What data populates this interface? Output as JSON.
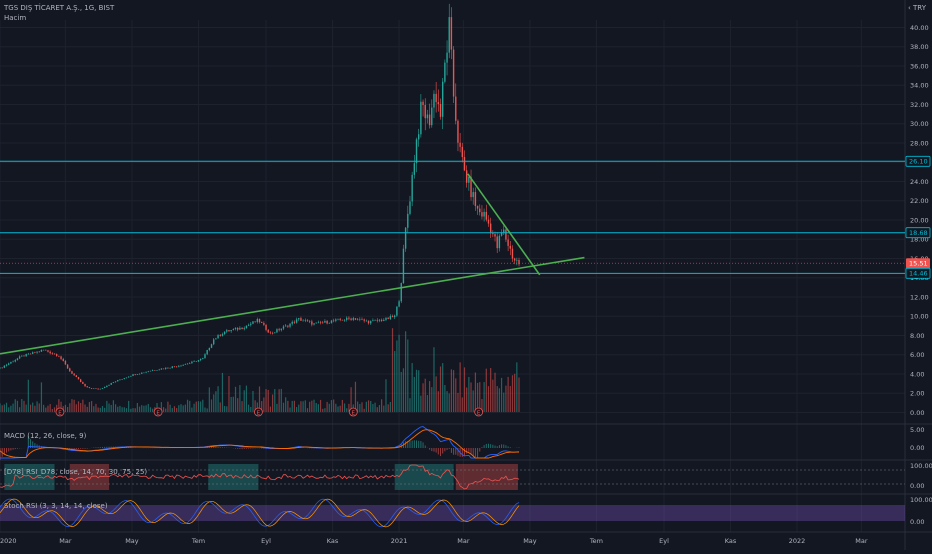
{
  "header": {
    "symbol": "TGS DIŞ TİCARET A.Ş., 1G, BIST",
    "volume_label": "Hacim",
    "currency": "‹ TRY"
  },
  "indicators": {
    "macd_label": "MACD (12, 26, close, 9)",
    "rsi_label": "[D78] RSI_D78, close, 14, 70, 30, 75, 25)",
    "stoch_label": "Stoch RSI (3, 3, 14, 14, close)"
  },
  "colors": {
    "background": "#131722",
    "up": "#26a69a",
    "down": "#ef5350",
    "horizontal_line": "#00bcd4",
    "trendline": "#4caf50",
    "macd_line": "#2962ff",
    "signal_line": "#ff6d00",
    "stoch_fill": "#7e57c2"
  },
  "chart_data": {
    "type": "candlestick",
    "x_labels": [
      "2020",
      "Mar",
      "May",
      "Tem",
      "Eyl",
      "Kas",
      "2021",
      "Mar",
      "May",
      "Tem",
      "Eyl",
      "Kas",
      "2022",
      "Mar"
    ],
    "y_ticks": [
      "40.00",
      "38.00",
      "36.00",
      "34.00",
      "32.00",
      "30.00",
      "28.00",
      "26.00",
      "24.00",
      "22.00",
      "20.00",
      "18.00",
      "16.00",
      "14.00",
      "12.00",
      "10.00",
      "8.00",
      "6.00",
      "4.00",
      "2.00",
      "0.00"
    ],
    "ylim": [
      0,
      40
    ],
    "price_series": [
      [
        "2020-01-01",
        4.6
      ],
      [
        "2020-01-20",
        5.8
      ],
      [
        "2020-02-10",
        6.5
      ],
      [
        "2020-02-24",
        5.9
      ],
      [
        "2020-03-05",
        4.3
      ],
      [
        "2020-03-20",
        2.6
      ],
      [
        "2020-04-01",
        2.4
      ],
      [
        "2020-04-15",
        3.2
      ],
      [
        "2020-05-01",
        3.9
      ],
      [
        "2020-05-20",
        4.4
      ],
      [
        "2020-06-10",
        4.8
      ],
      [
        "2020-06-25",
        5.2
      ],
      [
        "2020-07-05",
        5.6
      ],
      [
        "2020-07-15",
        7.6
      ],
      [
        "2020-07-25",
        8.4
      ],
      [
        "2020-08-10",
        8.8
      ],
      [
        "2020-08-25",
        9.6
      ],
      [
        "2020-09-05",
        8.2
      ],
      [
        "2020-09-20",
        9.0
      ],
      [
        "2020-10-01",
        9.7
      ],
      [
        "2020-10-15",
        9.2
      ],
      [
        "2020-11-01",
        9.5
      ],
      [
        "2020-11-20",
        9.8
      ],
      [
        "2020-12-05",
        9.4
      ],
      [
        "2020-12-20",
        9.7
      ],
      [
        "2020-12-28",
        10.0
      ],
      [
        "2021-01-02",
        12.2
      ],
      [
        "2021-01-06",
        18.0
      ],
      [
        "2021-01-11",
        22.5
      ],
      [
        "2021-01-16",
        27.5
      ],
      [
        "2021-01-22",
        32.0
      ],
      [
        "2021-01-28",
        30.0
      ],
      [
        "2021-02-03",
        33.5
      ],
      [
        "2021-02-08",
        31.0
      ],
      [
        "2021-02-12",
        36.0
      ],
      [
        "2021-02-16",
        40.0
      ],
      [
        "2021-02-20",
        33.0
      ],
      [
        "2021-02-25",
        27.5
      ],
      [
        "2021-03-02",
        25.0
      ],
      [
        "2021-03-08",
        23.0
      ],
      [
        "2021-03-14",
        21.0
      ],
      [
        "2021-03-20",
        20.5
      ],
      [
        "2021-03-26",
        19.2
      ],
      [
        "2021-04-01",
        17.2
      ],
      [
        "2021-04-06",
        19.0
      ],
      [
        "2021-04-11",
        17.5
      ],
      [
        "2021-04-16",
        16.0
      ],
      [
        "2021-04-21",
        15.51
      ]
    ],
    "horizontal_levels": [
      26.1,
      18.68,
      14.46
    ],
    "trendlines": [
      {
        "from": [
          "2020-01-01",
          6.1
        ],
        "to": [
          "2021-06-20",
          16.1
        ]
      },
      {
        "from": [
          "2021-03-05",
          24.8
        ],
        "to": [
          "2021-05-10",
          14.3
        ]
      }
    ],
    "price_badges": [
      {
        "label": "26.10",
        "value": 26.1,
        "kind": "level"
      },
      {
        "label": "18.68",
        "value": 18.68,
        "kind": "level"
      },
      {
        "label": "15.51",
        "value": 15.51,
        "kind": "last"
      },
      {
        "label": "14.46",
        "value": 14.46,
        "kind": "level"
      }
    ],
    "macd_ticks": [
      "5.00",
      "0.00"
    ],
    "rsi_ticks": [
      "100.00",
      "0.00"
    ],
    "stoch_ticks": [
      "100.00",
      "0.00"
    ],
    "earnings_markers": [
      "2020-02-25",
      "2020-05-25",
      "2020-08-25",
      "2020-11-20",
      "2021-03-15"
    ],
    "earnings_symbol": "E"
  }
}
